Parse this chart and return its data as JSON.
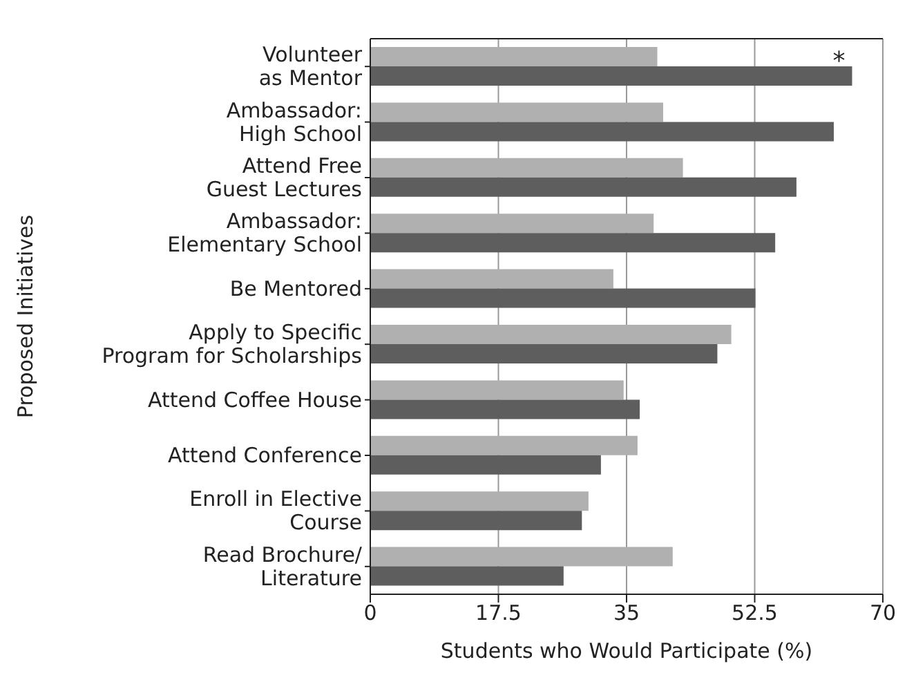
{
  "chart_data": {
    "type": "bar",
    "orientation": "horizontal",
    "xlabel": "Students who Would Participate (%)",
    "ylabel": "Proposed Initiatives",
    "categories": [
      "Volunteer\nas Mentor",
      "Ambassador:\nHigh School",
      "Attend Free\nGuest Lectures",
      "Ambassador:\nElementary School",
      "Be Mentored",
      "Apply to Specific\nProgram for Scholarships",
      "Attend Coffee House",
      "Attend Conference",
      "Enroll in Elective\nCourse",
      "Read Brochure/\nLiterature"
    ],
    "series": [
      {
        "color": "#b0b0b0",
        "values": [
          39.2,
          40.0,
          42.7,
          38.7,
          33.2,
          49.3,
          34.6,
          36.5,
          29.8,
          41.3
        ]
      },
      {
        "color": "#5e5e5e",
        "values": [
          65.8,
          63.3,
          58.2,
          55.3,
          52.6,
          47.4,
          36.8,
          31.5,
          28.9,
          26.4
        ]
      }
    ],
    "xlim": [
      0,
      70
    ],
    "xticks": [
      0,
      17.5,
      35,
      52.5,
      70
    ],
    "grid": "x",
    "legend": false,
    "annotations": [
      {
        "text": "*",
        "x": 65.8,
        "y": "Volunteer\nas Mentor"
      }
    ]
  }
}
